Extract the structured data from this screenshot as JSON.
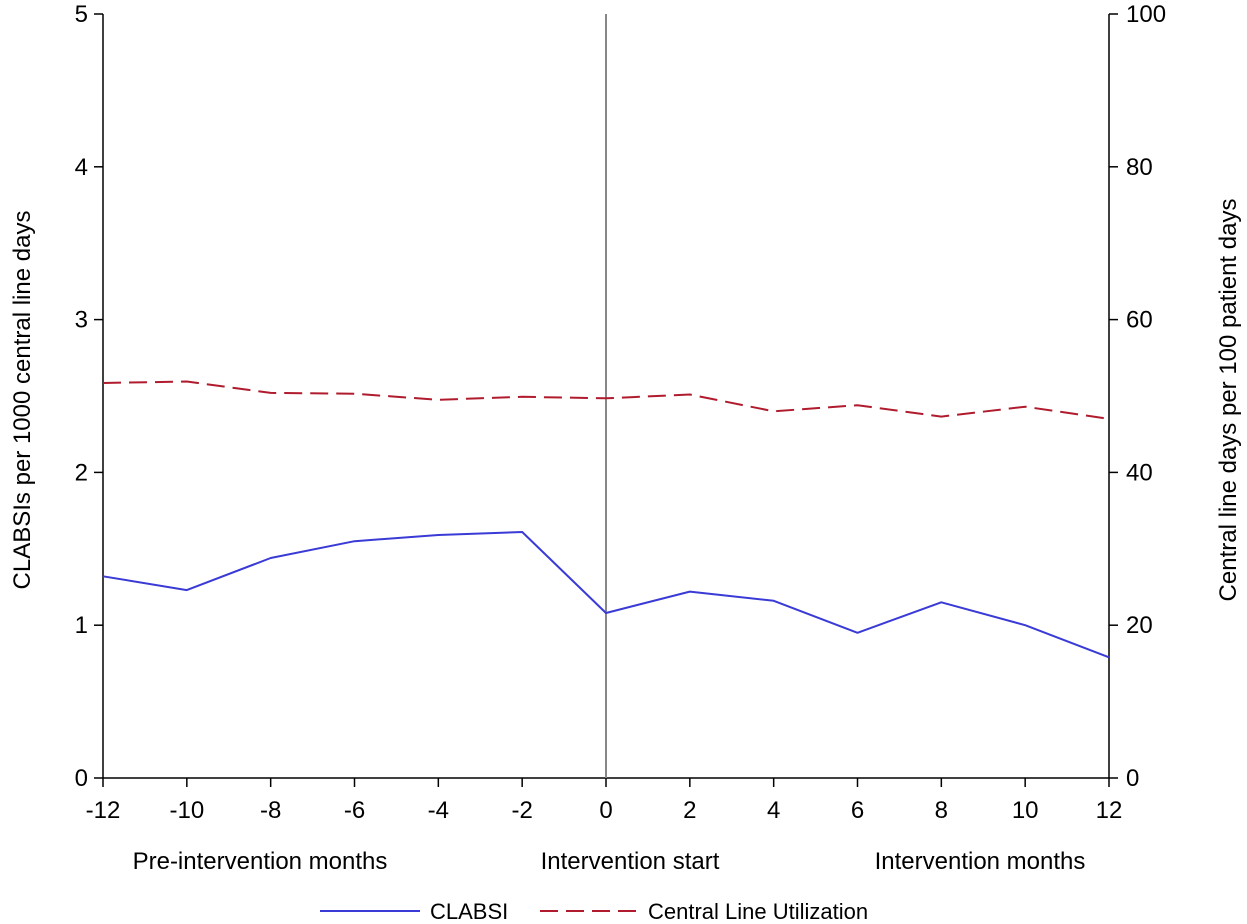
{
  "chart_data": {
    "type": "line",
    "x": [
      -12,
      -10,
      -8,
      -6,
      -4,
      -2,
      0,
      2,
      4,
      6,
      8,
      10,
      12
    ],
    "x_ticks": [
      -12,
      -10,
      -8,
      -6,
      -4,
      -2,
      0,
      2,
      4,
      6,
      8,
      10,
      12
    ],
    "xlim": [
      -12,
      12
    ],
    "ylim_left": [
      0,
      5
    ],
    "ylim_right": [
      0,
      100
    ],
    "y_ticks_left": [
      0,
      1,
      2,
      3,
      4,
      5
    ],
    "y_ticks_right": [
      0,
      20,
      40,
      60,
      80,
      100
    ],
    "ylabel_left": "CLABSIs per 1000 central line days",
    "ylabel_right": "Central line days per 100 patient days",
    "x_group_labels": {
      "pre": "Pre-intervention months",
      "start": "Intervention start",
      "post": "Intervention months"
    },
    "reference_line_x": 0,
    "legend_position": "bottom-center",
    "grid": false,
    "series": [
      {
        "name": "CLABSI",
        "axis": "left",
        "style": "solid",
        "color": "#3a3ad6",
        "values": [
          1.32,
          1.23,
          1.44,
          1.55,
          1.59,
          1.61,
          1.08,
          1.22,
          1.16,
          0.95,
          1.15,
          1.0,
          0.79
        ]
      },
      {
        "name": "Central Line Utilization",
        "axis": "right",
        "style": "dashed",
        "color": "#b01c2e",
        "values": [
          51.7,
          51.9,
          50.4,
          50.3,
          49.5,
          49.9,
          49.7,
          50.2,
          48.0,
          48.8,
          47.3,
          48.6,
          47.0
        ]
      }
    ]
  }
}
